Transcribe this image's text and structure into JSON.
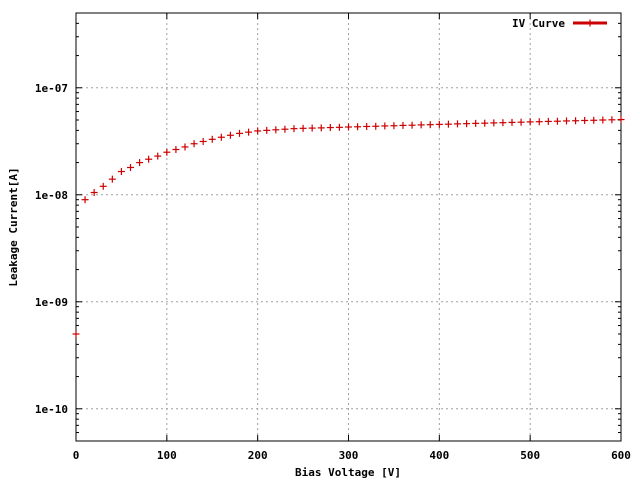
{
  "chart_data": {
    "type": "scatter",
    "xlabel": "Bias Voltage [V]",
    "ylabel": "Leakage Current[A]",
    "xlim": [
      0,
      600
    ],
    "ylim": [
      5e-11,
      5e-07
    ],
    "yscale": "log",
    "grid": true,
    "legend_position": "top-right",
    "x_ticks": [
      0,
      100,
      200,
      300,
      400,
      500,
      600
    ],
    "x_tick_labels": [
      "0",
      "100",
      "200",
      "300",
      "400",
      "500",
      "600"
    ],
    "y_ticks": [
      1e-10,
      1e-09,
      1e-08,
      1e-07
    ],
    "y_tick_labels": [
      "1e-10",
      "1e-09",
      "1e-08",
      "1e-07"
    ],
    "series": [
      {
        "name": "IV Curve",
        "color": "#cc0000",
        "x": [
          0,
          10,
          20,
          30,
          40,
          50,
          60,
          70,
          80,
          90,
          100,
          110,
          120,
          130,
          140,
          150,
          160,
          170,
          180,
          190,
          200,
          210,
          220,
          230,
          240,
          250,
          260,
          270,
          280,
          290,
          300,
          310,
          320,
          330,
          340,
          350,
          360,
          370,
          380,
          390,
          400,
          410,
          420,
          430,
          440,
          450,
          460,
          470,
          480,
          490,
          500,
          510,
          520,
          530,
          540,
          550,
          560,
          570,
          580,
          590,
          600
        ],
        "y": [
          5e-10,
          9e-09,
          1.05e-08,
          1.2e-08,
          1.4e-08,
          1.65e-08,
          1.8e-08,
          2e-08,
          2.15e-08,
          2.3e-08,
          2.5e-08,
          2.65e-08,
          2.8e-08,
          3e-08,
          3.15e-08,
          3.3e-08,
          3.45e-08,
          3.6e-08,
          3.75e-08,
          3.85e-08,
          3.95e-08,
          4e-08,
          4.05e-08,
          4.1e-08,
          4.15e-08,
          4.18e-08,
          4.2e-08,
          4.22e-08,
          4.25e-08,
          4.27e-08,
          4.3e-08,
          4.32e-08,
          4.35e-08,
          4.37e-08,
          4.4e-08,
          4.42e-08,
          4.45e-08,
          4.47e-08,
          4.5e-08,
          4.52e-08,
          4.55e-08,
          4.57e-08,
          4.6e-08,
          4.62e-08,
          4.65e-08,
          4.67e-08,
          4.7e-08,
          4.72e-08,
          4.75e-08,
          4.77e-08,
          4.8e-08,
          4.82e-08,
          4.85e-08,
          4.87e-08,
          4.9e-08,
          4.92e-08,
          4.95e-08,
          4.97e-08,
          5e-08,
          5.02e-08,
          5.05e-08
        ]
      }
    ]
  }
}
